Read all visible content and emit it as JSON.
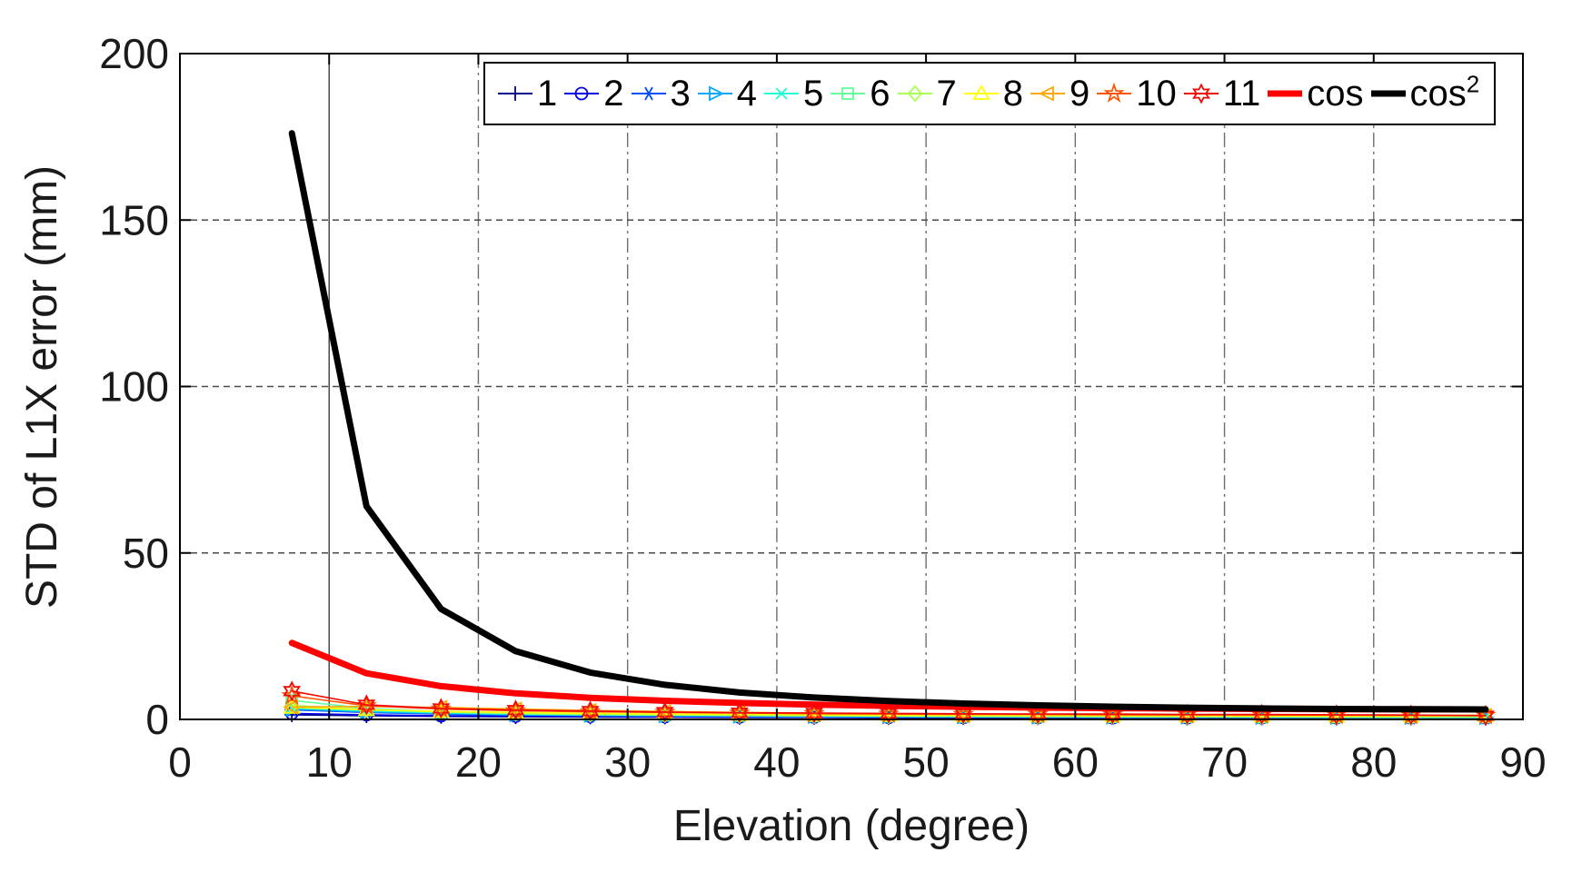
{
  "figure": {
    "background": "#ffffff",
    "axis_color": "#000000",
    "grid_color": "#6e6e6e"
  },
  "chart_data": {
    "type": "line",
    "title": "",
    "xlabel": "Elevation (degree)",
    "ylabel": "STD of L1X error (mm)",
    "xlim": [
      0,
      90
    ],
    "ylim": [
      0,
      200
    ],
    "xticks": [
      0,
      10,
      20,
      30,
      40,
      50,
      60,
      70,
      80,
      90
    ],
    "yticks": [
      0,
      50,
      100,
      150,
      200
    ],
    "grid": true,
    "legend_position": "top-inside",
    "x": [
      7.5,
      12.5,
      17.5,
      22.5,
      27.5,
      32.5,
      37.5,
      42.5,
      47.5,
      52.5,
      57.5,
      62.5,
      67.5,
      72.5,
      77.5,
      82.5,
      87.5
    ],
    "series": [
      {
        "label": "1",
        "sup": "",
        "color": "#00008F",
        "marker": "plus",
        "line_width": 1.6,
        "values": [
          1.4,
          1.1,
          0.9,
          0.8,
          0.7,
          0.7,
          0.6,
          0.6,
          0.5,
          0.5,
          0.5,
          0.5,
          0.4,
          0.4,
          0.4,
          0.4,
          0.4
        ]
      },
      {
        "label": "2",
        "sup": "",
        "color": "#0000F0",
        "marker": "circle",
        "line_width": 1.6,
        "values": [
          1.8,
          1.4,
          1.1,
          1.0,
          0.9,
          0.8,
          0.7,
          0.7,
          0.6,
          0.6,
          0.6,
          0.5,
          0.5,
          0.5,
          0.5,
          0.5,
          0.5
        ]
      },
      {
        "label": "3",
        "sup": "",
        "color": "#0050FF",
        "marker": "asterisk",
        "line_width": 1.6,
        "values": [
          2.9,
          2.1,
          1.6,
          1.3,
          1.1,
          1.0,
          0.9,
          0.8,
          0.8,
          0.7,
          0.7,
          0.6,
          0.6,
          0.6,
          0.6,
          0.5,
          0.5
        ]
      },
      {
        "label": "4",
        "sup": "",
        "color": "#00A8FF",
        "marker": "triangle-right",
        "line_width": 1.6,
        "values": [
          3.1,
          2.3,
          1.8,
          1.4,
          1.2,
          1.1,
          1.0,
          0.9,
          0.8,
          0.8,
          0.7,
          0.7,
          0.7,
          0.6,
          0.6,
          0.6,
          0.6
        ]
      },
      {
        "label": "5",
        "sup": "",
        "color": "#22FFD3",
        "marker": "x",
        "line_width": 1.6,
        "values": [
          3.4,
          2.6,
          2.0,
          1.6,
          1.4,
          1.2,
          1.1,
          1.0,
          0.9,
          0.8,
          0.8,
          0.7,
          0.7,
          0.7,
          0.6,
          0.6,
          0.6
        ]
      },
      {
        "label": "6",
        "sup": "",
        "color": "#62FF9A",
        "marker": "square",
        "line_width": 1.6,
        "values": [
          5.7,
          3.3,
          2.3,
          1.8,
          1.5,
          1.3,
          1.2,
          1.1,
          1.0,
          0.9,
          0.9,
          0.8,
          0.8,
          0.7,
          0.7,
          0.7,
          0.7
        ]
      },
      {
        "label": "7",
        "sup": "",
        "color": "#AAFF55",
        "marker": "diamond",
        "line_width": 1.6,
        "values": [
          4.2,
          3.0,
          2.2,
          1.8,
          1.5,
          1.4,
          1.2,
          1.1,
          1.0,
          1.0,
          0.9,
          0.9,
          0.8,
          0.8,
          0.8,
          0.7,
          0.7
        ]
      },
      {
        "label": "8",
        "sup": "",
        "color": "#FFFF00",
        "marker": "triangle-up",
        "line_width": 1.6,
        "values": [
          3.6,
          2.9,
          2.4,
          2.1,
          1.8,
          1.6,
          1.5,
          1.4,
          1.3,
          1.2,
          1.2,
          1.1,
          1.1,
          1.1,
          1.0,
          1.0,
          1.2
        ]
      },
      {
        "label": "9",
        "sup": "",
        "color": "#FFA800",
        "marker": "triangle-left",
        "line_width": 1.6,
        "values": [
          3.7,
          3.9,
          3.6,
          3.1,
          2.7,
          2.4,
          2.1,
          1.9,
          1.7,
          1.6,
          1.5,
          1.4,
          1.3,
          1.3,
          1.2,
          1.2,
          1.2
        ]
      },
      {
        "label": "10",
        "sup": "",
        "color": "#FF5500",
        "marker": "pentagram",
        "line_width": 1.6,
        "values": [
          7.1,
          4.1,
          3.1,
          2.6,
          2.3,
          2.1,
          1.9,
          1.7,
          1.6,
          1.5,
          1.5,
          1.4,
          1.4,
          1.3,
          1.3,
          1.2,
          1.2
        ]
      },
      {
        "label": "11",
        "sup": "",
        "color": "#F10800",
        "marker": "hexagram",
        "line_width": 1.6,
        "values": [
          8.5,
          4.4,
          3.3,
          2.8,
          2.5,
          2.2,
          2.0,
          1.9,
          1.8,
          1.7,
          1.6,
          1.6,
          1.5,
          1.5,
          1.4,
          1.3,
          1.1
        ]
      },
      {
        "label": "cos",
        "sup": "",
        "color": "#FF0000",
        "marker": "none",
        "line_width": 7,
        "values": [
          22.98,
          13.86,
          9.98,
          7.84,
          6.5,
          5.58,
          4.93,
          4.44,
          4.07,
          3.78,
          3.56,
          3.38,
          3.25,
          3.15,
          3.07,
          3.03,
          3.0
        ]
      },
      {
        "label": "cos",
        "sup": "2",
        "color": "#000000",
        "marker": "none",
        "line_width": 7,
        "values": [
          176.07,
          64.05,
          33.18,
          20.48,
          14.08,
          10.39,
          8.09,
          6.57,
          5.52,
          4.77,
          4.22,
          3.81,
          3.51,
          3.3,
          3.15,
          3.05,
          3.01
        ]
      }
    ]
  }
}
